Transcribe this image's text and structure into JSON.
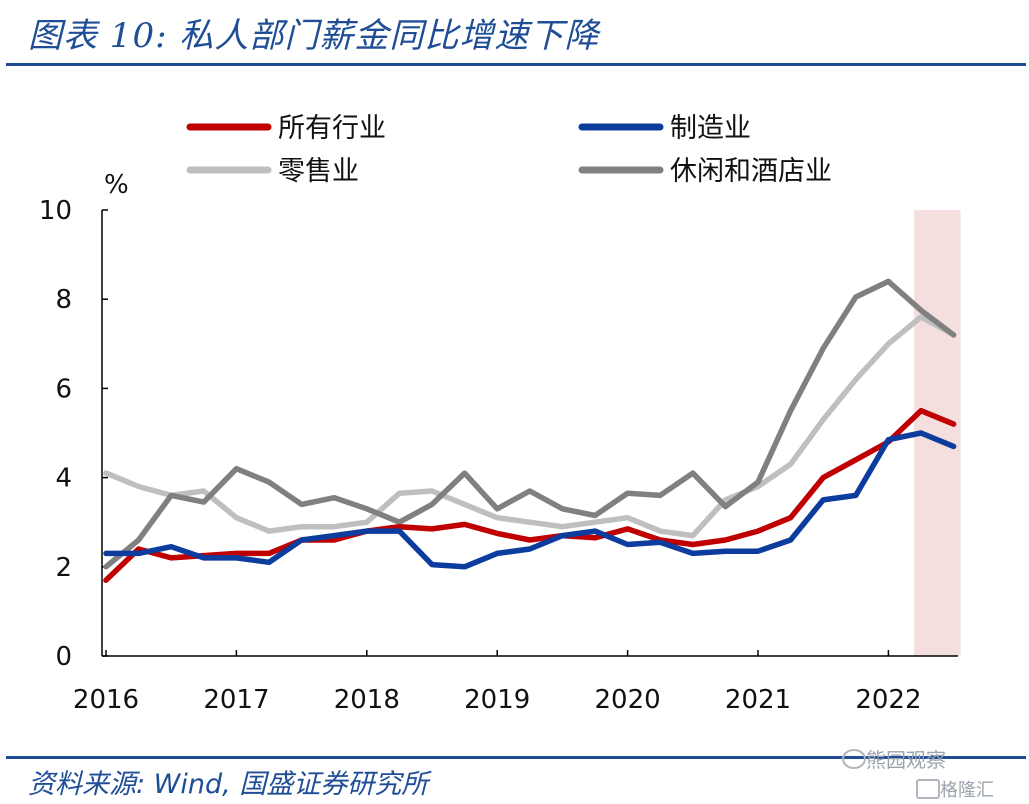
{
  "figure_title": "图表 10: 私人部门薪金同比增速下降",
  "source_note": "资料来源: Wind, 国盛证券研究所",
  "watermark": {
    "line1": "熊园观察",
    "line2": "格隆汇"
  },
  "chart_data": {
    "type": "line",
    "unit_label": "%",
    "ylim": [
      0,
      10
    ],
    "yticks": [
      0,
      2,
      4,
      6,
      8,
      10
    ],
    "xticks": [
      "2016",
      "2017",
      "2018",
      "2019",
      "2020",
      "2021",
      "2022"
    ],
    "x": [
      "2016Q1",
      "2016Q2",
      "2016Q3",
      "2016Q4",
      "2017Q1",
      "2017Q2",
      "2017Q3",
      "2017Q4",
      "2018Q1",
      "2018Q2",
      "2018Q3",
      "2018Q4",
      "2019Q1",
      "2019Q2",
      "2019Q3",
      "2019Q4",
      "2020Q1",
      "2020Q2",
      "2020Q3",
      "2020Q4",
      "2021Q1",
      "2021Q2",
      "2021Q3",
      "2021Q4",
      "2022Q1",
      "2022Q2",
      "2022Q3"
    ],
    "highlight": {
      "from": "2022Q2",
      "to": "2022Q3",
      "color": "#f5dede"
    },
    "legend_position": "top",
    "series": [
      {
        "name": "所有行业",
        "color": "#c00000",
        "values": [
          1.7,
          2.4,
          2.2,
          2.25,
          2.3,
          2.3,
          2.6,
          2.6,
          2.8,
          2.9,
          2.85,
          2.95,
          2.75,
          2.6,
          2.7,
          2.65,
          2.85,
          2.6,
          2.5,
          2.6,
          2.8,
          3.1,
          4.0,
          4.4,
          4.8,
          5.5,
          5.2
        ]
      },
      {
        "name": "制造业",
        "color": "#0b3c9e",
        "values": [
          2.3,
          2.3,
          2.45,
          2.2,
          2.2,
          2.1,
          2.6,
          2.7,
          2.8,
          2.8,
          2.05,
          2.0,
          2.3,
          2.4,
          2.7,
          2.8,
          2.5,
          2.55,
          2.3,
          2.35,
          2.35,
          2.6,
          3.5,
          3.6,
          4.85,
          5.0,
          4.7
        ]
      },
      {
        "name": "零售业",
        "color": "#bfbfbf",
        "values": [
          4.1,
          3.8,
          3.6,
          3.7,
          3.1,
          2.8,
          2.9,
          2.9,
          3.0,
          3.65,
          3.7,
          3.4,
          3.1,
          3.0,
          2.9,
          3.0,
          3.1,
          2.8,
          2.7,
          3.5,
          3.8,
          4.3,
          5.3,
          6.2,
          7.0,
          7.6,
          7.2
        ]
      },
      {
        "name": "休闲和酒店业",
        "color": "#808080",
        "values": [
          2.0,
          2.6,
          3.6,
          3.45,
          4.2,
          3.9,
          3.4,
          3.55,
          3.3,
          3.0,
          3.4,
          4.1,
          3.3,
          3.7,
          3.3,
          3.15,
          3.65,
          3.6,
          4.1,
          3.35,
          3.9,
          5.5,
          6.9,
          8.05,
          8.4,
          7.75,
          7.2
        ]
      }
    ]
  }
}
